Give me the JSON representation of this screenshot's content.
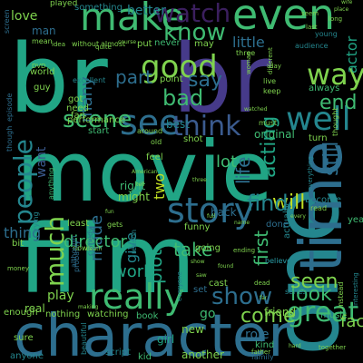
{
  "background": "#000000",
  "palette": {
    "purple": "#3b1f5e",
    "indigo": "#463a8a",
    "blue": "#3b5b8f",
    "steel": "#2d6e8e",
    "teal": "#24868e",
    "sea": "#21a585",
    "green": "#3fbb72",
    "lime": "#7fd34e",
    "yellow": "#c2df23",
    "cyan": "#26828e"
  },
  "words": [
    {
      "text": "br",
      "color": "sea"
    },
    {
      "text": "br",
      "color": "indigo"
    },
    {
      "text": "movie",
      "color": "sea"
    },
    {
      "text": "film",
      "color": "sea"
    },
    {
      "text": "one",
      "color": "teal"
    },
    {
      "text": "character",
      "color": "steel"
    },
    {
      "text": "make",
      "color": "green"
    },
    {
      "text": "even",
      "color": "green"
    },
    {
      "text": "see",
      "color": "steel"
    },
    {
      "text": "time",
      "color": "steel"
    },
    {
      "text": "story",
      "color": "steel"
    },
    {
      "text": "good",
      "color": "lime"
    },
    {
      "text": "well",
      "color": "teal"
    },
    {
      "text": "really",
      "color": "green"
    },
    {
      "text": "watch",
      "color": "purple"
    },
    {
      "text": "think",
      "color": "blue"
    },
    {
      "text": "scene",
      "color": "green"
    },
    {
      "text": "way",
      "color": "lime"
    },
    {
      "text": "know",
      "color": "green"
    },
    {
      "text": "people",
      "color": "teal"
    },
    {
      "text": "much",
      "color": "lime"
    },
    {
      "text": "show",
      "color": "steel"
    },
    {
      "text": "great",
      "color": "green"
    },
    {
      "text": "bad",
      "color": "green"
    },
    {
      "text": "say",
      "color": "steel"
    },
    {
      "text": "part",
      "color": "steel"
    },
    {
      "text": "will",
      "color": "yellow"
    },
    {
      "text": "look",
      "color": "green"
    },
    {
      "text": "find",
      "color": "teal"
    },
    {
      "text": "end",
      "color": "green"
    },
    {
      "text": "made",
      "color": "steel"
    },
    {
      "text": "many",
      "color": "steel"
    },
    {
      "text": "acting",
      "color": "sea"
    },
    {
      "text": "life",
      "color": "steel"
    },
    {
      "text": "still",
      "color": "steel"
    },
    {
      "text": "director",
      "color": "green"
    },
    {
      "text": "plot",
      "color": "sea"
    },
    {
      "text": "first",
      "color": "green"
    },
    {
      "text": "seen",
      "color": "lime"
    },
    {
      "text": "come",
      "color": "lime"
    },
    {
      "text": "take",
      "color": "green"
    },
    {
      "text": "lot",
      "color": "green"
    },
    {
      "text": "two",
      "color": "yellow"
    },
    {
      "text": "work",
      "color": "sea"
    },
    {
      "text": "give",
      "color": "teal"
    },
    {
      "text": "actor",
      "color": "sea"
    },
    {
      "text": "little",
      "color": "steel"
    },
    {
      "text": "love",
      "color": "lime"
    },
    {
      "text": "want",
      "color": "blue"
    },
    {
      "text": "thing",
      "color": "steel"
    },
    {
      "text": "fact",
      "color": "lime"
    },
    {
      "text": "something",
      "color": "teal"
    },
    {
      "text": "better",
      "color": "teal"
    },
    {
      "text": "best",
      "color": "teal"
    },
    {
      "text": "back",
      "color": "steel"
    },
    {
      "text": "funny",
      "color": "lime"
    },
    {
      "text": "play",
      "color": "lime"
    },
    {
      "text": "real",
      "color": "lime"
    },
    {
      "text": "actually",
      "color": "teal"
    },
    {
      "text": "go",
      "color": "green"
    },
    {
      "text": "going",
      "color": "lime"
    },
    {
      "text": "performance",
      "color": "lime"
    },
    {
      "text": "friend",
      "color": "lime"
    },
    {
      "text": "kid",
      "color": "green"
    },
    {
      "text": "another",
      "color": "lime"
    },
    {
      "text": "always",
      "color": "green"
    },
    {
      "text": "role",
      "color": "steel"
    },
    {
      "text": "book",
      "color": "green"
    },
    {
      "text": "original",
      "color": "green"
    },
    {
      "text": "new",
      "color": "lime"
    },
    {
      "text": "cast",
      "color": "lime"
    },
    {
      "text": "script",
      "color": "teal"
    },
    {
      "text": "girl",
      "color": "sea"
    },
    {
      "text": "man",
      "color": "steel"
    },
    {
      "text": "world",
      "color": "lime"
    },
    {
      "text": "fan",
      "color": "lime"
    },
    {
      "text": "comedy",
      "color": "steel"
    },
    {
      "text": "might",
      "color": "lime"
    },
    {
      "text": "right",
      "color": "green"
    },
    {
      "text": "nothing",
      "color": "lime"
    },
    {
      "text": "watching",
      "color": "lime"
    },
    {
      "text": "enough",
      "color": "lime"
    },
    {
      "text": "music",
      "color": "green"
    },
    {
      "text": "sure",
      "color": "lime"
    },
    {
      "text": "anyone",
      "color": "teal"
    },
    {
      "text": "family",
      "color": "steel"
    },
    {
      "text": "least",
      "color": "lime"
    },
    {
      "text": "shot",
      "color": "lime"
    },
    {
      "text": "feel",
      "color": "lime"
    },
    {
      "text": "done",
      "color": "steel"
    },
    {
      "text": "point",
      "color": "lime"
    },
    {
      "text": "believe",
      "color": "teal"
    },
    {
      "text": "set",
      "color": "steel"
    },
    {
      "text": "probably",
      "color": "steel"
    },
    {
      "text": "believe",
      "color": "teal"
    },
    {
      "text": "played",
      "color": "lime"
    },
    {
      "text": "excellent",
      "color": "teal"
    },
    {
      "text": "without",
      "color": "lime"
    },
    {
      "text": "almost",
      "color": "lime"
    },
    {
      "text": "never",
      "color": "green"
    },
    {
      "text": "may",
      "color": "lime"
    },
    {
      "text": "put",
      "color": "lime"
    },
    {
      "text": "audience",
      "color": "teal"
    },
    {
      "text": "episode",
      "color": "steel"
    },
    {
      "text": "though",
      "color": "steel"
    },
    {
      "text": "screen",
      "color": "steel"
    },
    {
      "text": "DVD",
      "color": "lime"
    },
    {
      "text": "guy",
      "color": "lime"
    },
    {
      "text": "idea",
      "color": "lime"
    },
    {
      "text": "got",
      "color": "lime"
    },
    {
      "text": "need",
      "color": "lime"
    },
    {
      "text": "start",
      "color": "green"
    },
    {
      "text": "around",
      "color": "lime"
    },
    {
      "text": "old",
      "color": "lime"
    },
    {
      "text": "bit",
      "color": "lime"
    },
    {
      "text": "money",
      "color": "lime"
    },
    {
      "text": "father",
      "color": "lime"
    },
    {
      "text": "reason",
      "color": "teal"
    },
    {
      "text": "ending",
      "color": "lime"
    },
    {
      "text": "gets",
      "color": "lime"
    },
    {
      "text": "series",
      "color": "teal"
    },
    {
      "text": "name",
      "color": "lime"
    },
    {
      "text": "instead",
      "color": "lime"
    },
    {
      "text": "interesting",
      "color": "teal"
    },
    {
      "text": "become",
      "color": "teal"
    },
    {
      "text": "read",
      "color": "lime"
    },
    {
      "text": "year",
      "color": "green"
    },
    {
      "text": "turn",
      "color": "lime"
    },
    {
      "text": "must",
      "color": "lime"
    },
    {
      "text": "thought",
      "color": "lime"
    },
    {
      "text": "everything",
      "color": "teal"
    },
    {
      "text": "kind",
      "color": "green"
    },
    {
      "text": "together",
      "color": "lime"
    },
    {
      "text": "live",
      "color": "lime"
    },
    {
      "text": "keep",
      "color": "lime"
    },
    {
      "text": "young",
      "color": "teal"
    },
    {
      "text": "trying",
      "color": "teal"
    },
    {
      "text": "anything",
      "color": "green"
    },
    {
      "text": "everyone",
      "color": "teal"
    },
    {
      "text": "beautiful",
      "color": "teal"
    },
    {
      "text": "last",
      "color": "lime"
    },
    {
      "text": "mean",
      "color": "lime"
    },
    {
      "text": "three",
      "color": "lime"
    },
    {
      "text": "quite",
      "color": "lime"
    },
    {
      "text": "now",
      "color": "lime"
    },
    {
      "text": "death",
      "color": "lime"
    },
    {
      "text": "dead",
      "color": "lime"
    },
    {
      "text": "far",
      "color": "lime"
    },
    {
      "text": "American",
      "color": "lime"
    },
    {
      "text": "watched",
      "color": "lime"
    },
    {
      "text": "different",
      "color": "lime"
    },
    {
      "text": "woman",
      "color": "lime"
    },
    {
      "text": "day",
      "color": "lime"
    },
    {
      "text": "wife",
      "color": "lime"
    },
    {
      "text": "long",
      "color": "lime"
    },
    {
      "text": "place",
      "color": "lime"
    },
    {
      "text": "seem",
      "color": "lime"
    },
    {
      "text": "hard",
      "color": "lime"
    },
    {
      "text": "although",
      "color": "steel"
    },
    {
      "text": "found",
      "color": "lime"
    },
    {
      "text": "saw",
      "color": "lime"
    },
    {
      "text": "show",
      "color": "lime"
    },
    {
      "text": "course",
      "color": "lime"
    },
    {
      "text": "making",
      "color": "lime"
    },
    {
      "text": "fun",
      "color": "lime"
    },
    {
      "text": "every",
      "color": "lime"
    },
    {
      "text": "full",
      "color": "lime"
    },
    {
      "text": "three",
      "color": "lime"
    },
    {
      "text": "tell",
      "color": "lime"
    }
  ]
}
